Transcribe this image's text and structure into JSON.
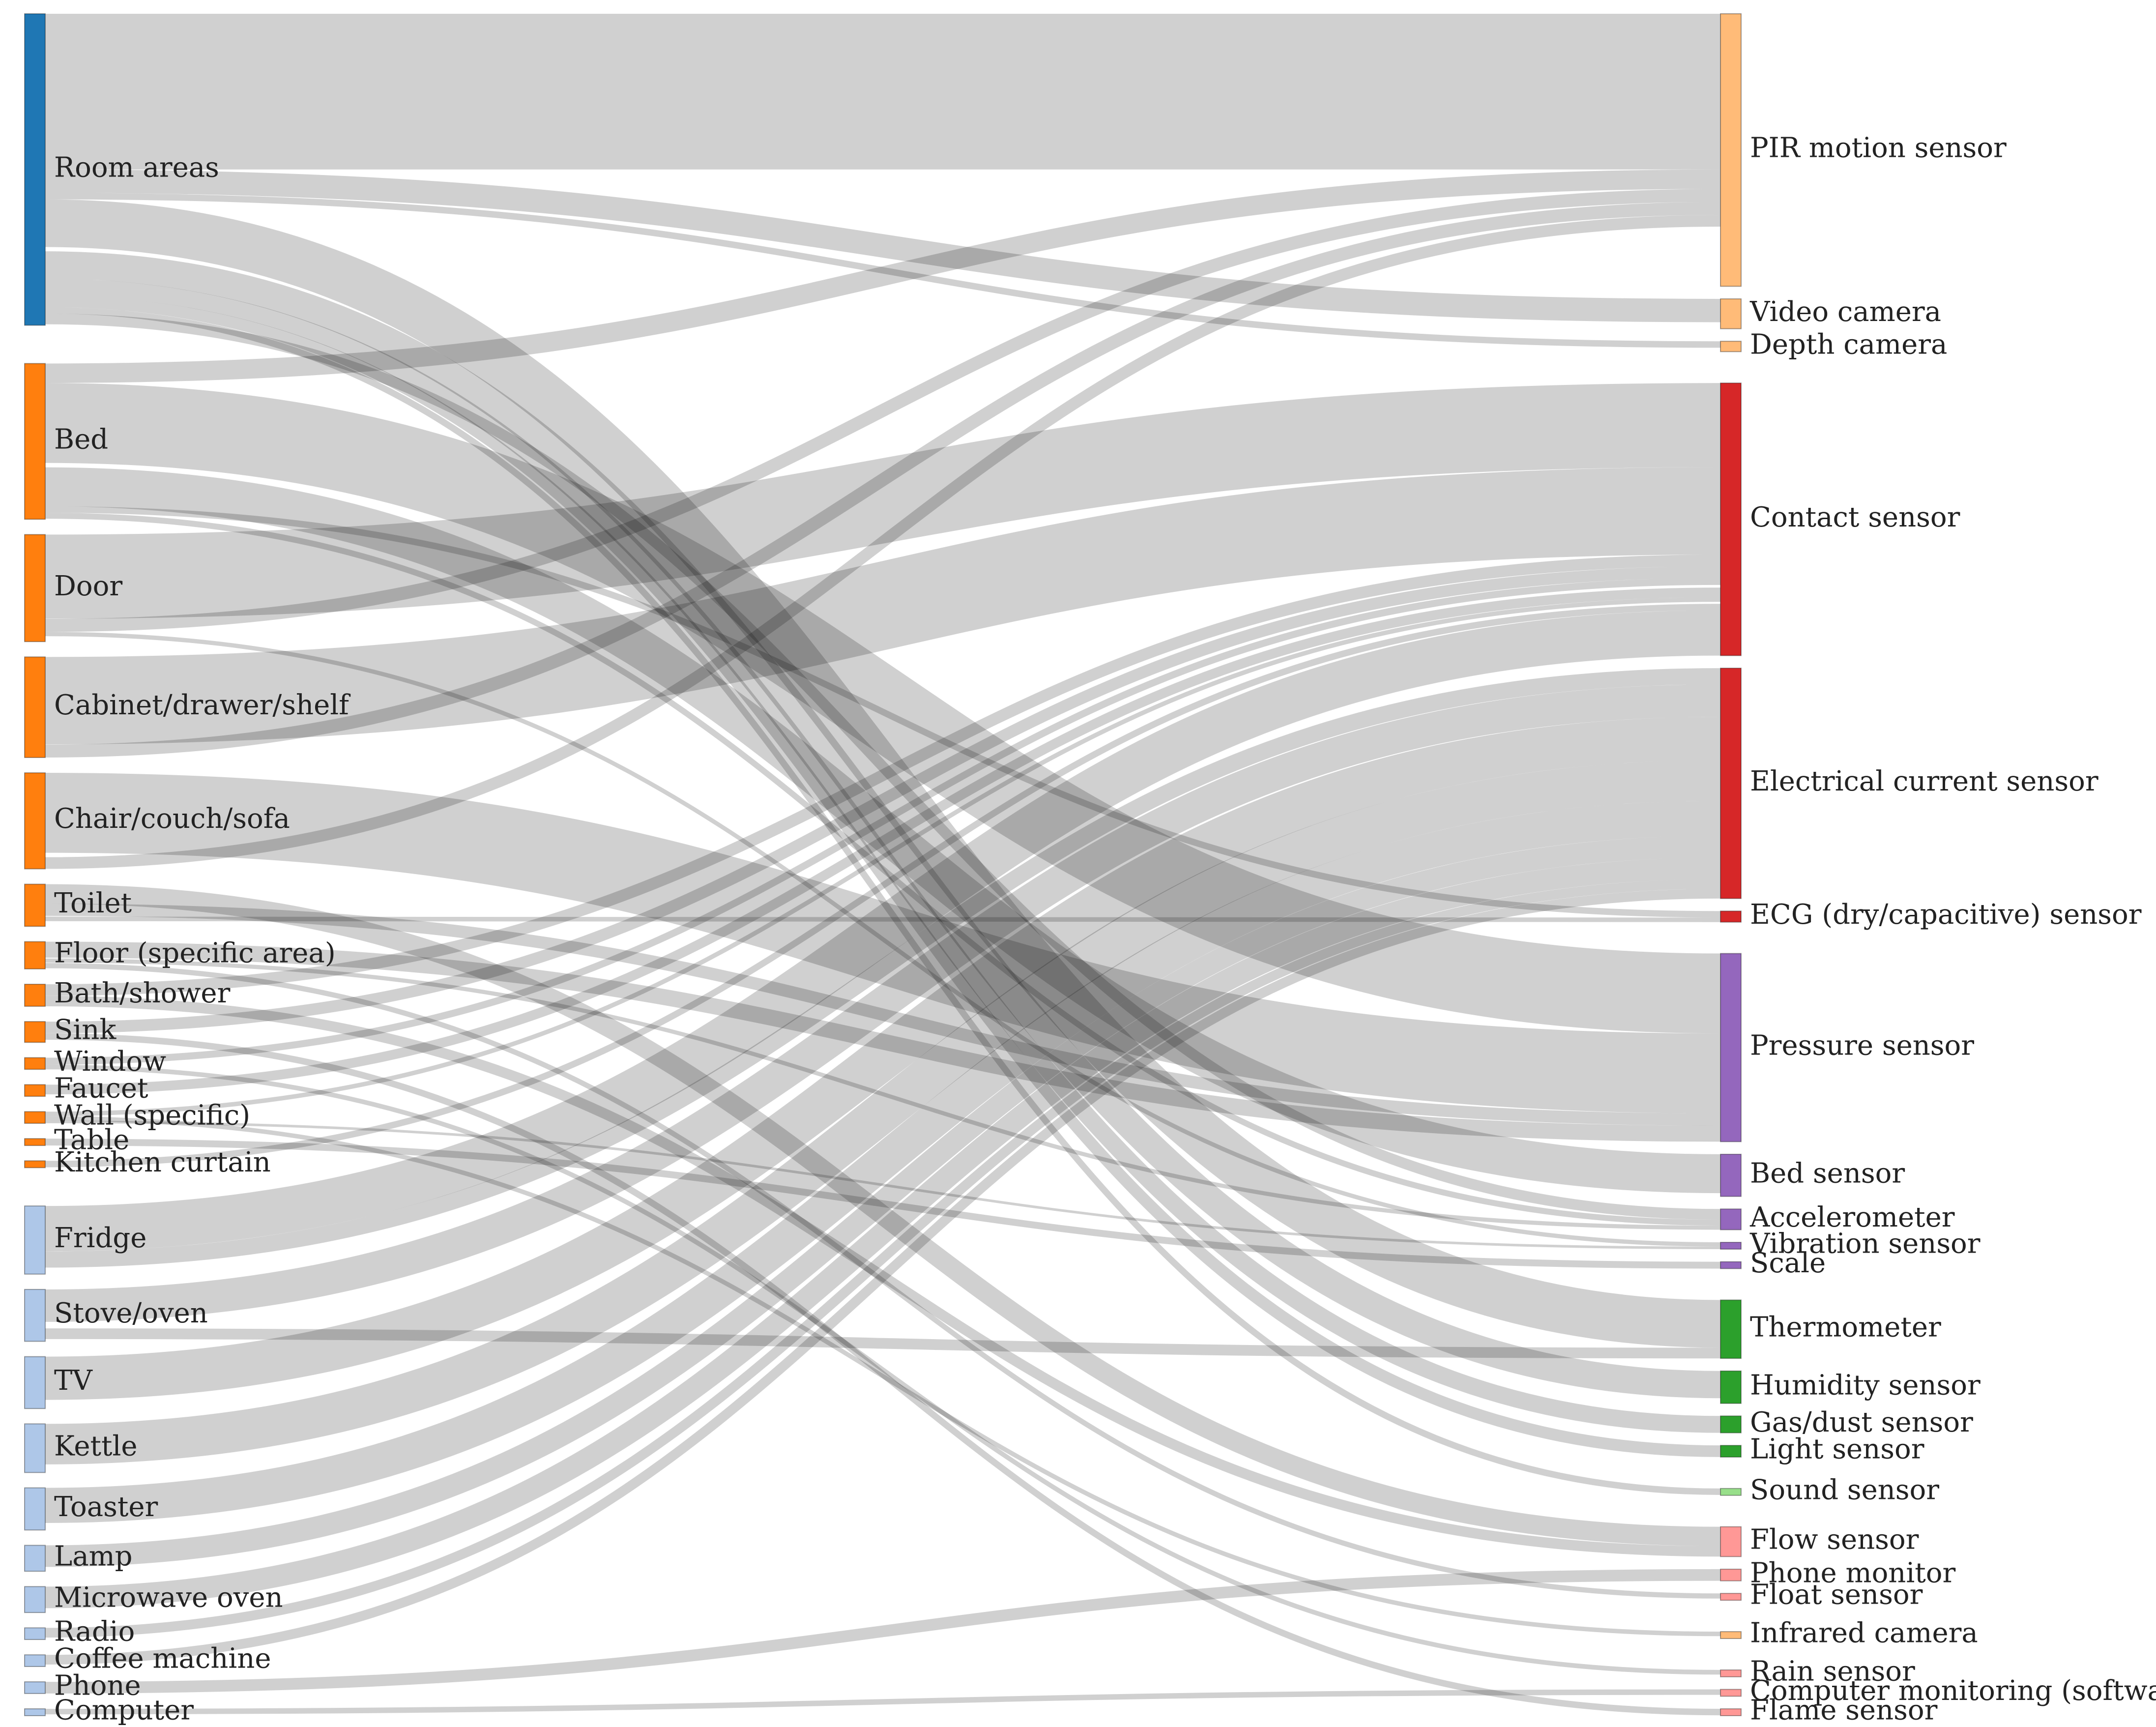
{
  "colors": {
    "room": "#1f77b4",
    "furniture": "#ff7f0e",
    "appliance": "#aec7e8",
    "link": "#c8c8c8",
    "camera": "#ffbb78",
    "contact": "#d62728",
    "pressure": "#9467bd",
    "environment": "#2ca02c",
    "environment_light": "#98df8a",
    "misc": "#ff9896"
  },
  "sources": [
    {
      "id": "room-areas",
      "label": "Room areas",
      "color": "room",
      "weight": 48
    },
    {
      "id": "bed",
      "label": "Bed",
      "color": "furniture",
      "weight": 24
    },
    {
      "id": "door",
      "label": "Door",
      "color": "furniture",
      "weight": 16.5
    },
    {
      "id": "cabinet",
      "label": "Cabinet/drawer/shelf",
      "color": "furniture",
      "weight": 15.5
    },
    {
      "id": "chair",
      "label": "Chair/couch/sofa",
      "color": "furniture",
      "weight": 14.8
    },
    {
      "id": "toilet",
      "label": "Toilet",
      "color": "furniture",
      "weight": 6.5
    },
    {
      "id": "floor",
      "label": "Floor (specific area)",
      "color": "furniture",
      "weight": 4.2
    },
    {
      "id": "bath",
      "label": "Bath/shower",
      "color": "furniture",
      "weight": 3.4
    },
    {
      "id": "sink",
      "label": "Sink",
      "color": "furniture",
      "weight": 3.2
    },
    {
      "id": "window",
      "label": "Window",
      "color": "furniture",
      "weight": 1.8
    },
    {
      "id": "faucet",
      "label": "Faucet",
      "color": "furniture",
      "weight": 1.8
    },
    {
      "id": "wall",
      "label": "Wall (specific)",
      "color": "furniture",
      "weight": 1.8
    },
    {
      "id": "table",
      "label": "Table",
      "color": "furniture",
      "weight": 1
    },
    {
      "id": "kitchen-curtain",
      "label": "Kitchen curtain",
      "color": "furniture",
      "weight": 1
    },
    {
      "id": "fridge",
      "label": "Fridge",
      "color": "appliance",
      "weight": 10.5
    },
    {
      "id": "stove",
      "label": "Stove/oven",
      "color": "appliance",
      "weight": 8
    },
    {
      "id": "tv",
      "label": "TV",
      "color": "appliance",
      "weight": 8
    },
    {
      "id": "kettle",
      "label": "Kettle",
      "color": "appliance",
      "weight": 7.5
    },
    {
      "id": "toaster",
      "label": "Toaster",
      "color": "appliance",
      "weight": 6.5
    },
    {
      "id": "lamp",
      "label": "Lamp",
      "color": "appliance",
      "weight": 4
    },
    {
      "id": "microwave",
      "label": "Microwave oven",
      "color": "appliance",
      "weight": 4
    },
    {
      "id": "radio",
      "label": "Radio",
      "color": "appliance",
      "weight": 1.8
    },
    {
      "id": "coffee",
      "label": "Coffee machine",
      "color": "appliance",
      "weight": 1.8
    },
    {
      "id": "phone",
      "label": "Phone",
      "color": "appliance",
      "weight": 1.8
    },
    {
      "id": "computer",
      "label": "Computer",
      "color": "appliance",
      "weight": 0.8
    }
  ],
  "targets": [
    {
      "id": "pir",
      "label": "PIR motion sensor",
      "color": "camera",
      "weight": 42
    },
    {
      "id": "video",
      "label": "Video camera",
      "color": "camera",
      "weight": 4.6
    },
    {
      "id": "depth",
      "label": "Depth camera",
      "color": "camera",
      "weight": 1.6
    },
    {
      "id": "contact",
      "label": "Contact sensor",
      "color": "contact",
      "weight": 42
    },
    {
      "id": "electrical",
      "label": "Electrical current sensor",
      "color": "contact",
      "weight": 35.5
    },
    {
      "id": "ecg",
      "label": "ECG (dry/capacitive) sensor",
      "color": "contact",
      "weight": 1.7
    },
    {
      "id": "pressure",
      "label": "Pressure sensor",
      "color": "pressure",
      "weight": 29
    },
    {
      "id": "bed-sensor",
      "label": "Bed sensor",
      "color": "pressure",
      "weight": 6.5
    },
    {
      "id": "accelerometer",
      "label": "Accelerometer",
      "color": "pressure",
      "weight": 3.2
    },
    {
      "id": "vibration",
      "label": "Vibration sensor",
      "color": "pressure",
      "weight": 1
    },
    {
      "id": "scale",
      "label": "Scale",
      "color": "pressure",
      "weight": 1
    },
    {
      "id": "thermometer",
      "label": "Thermometer",
      "color": "environment",
      "weight": 9
    },
    {
      "id": "humidity",
      "label": "Humidity sensor",
      "color": "environment",
      "weight": 5
    },
    {
      "id": "gas",
      "label": "Gas/dust sensor",
      "color": "environment",
      "weight": 2.6
    },
    {
      "id": "light",
      "label": "Light sensor",
      "color": "environment",
      "weight": 1.8
    },
    {
      "id": "sound",
      "label": "Sound sensor",
      "color": "environment_light",
      "weight": 1
    },
    {
      "id": "flow",
      "label": "Flow sensor",
      "color": "misc",
      "weight": 4.6
    },
    {
      "id": "phone-monitor",
      "label": "Phone monitor",
      "color": "misc",
      "weight": 1.8
    },
    {
      "id": "float",
      "label": "Float sensor",
      "color": "misc",
      "weight": 1
    },
    {
      "id": "infrared",
      "label": "Infrared camera",
      "color": "camera",
      "weight": 1
    },
    {
      "id": "rain",
      "label": "Rain sensor",
      "color": "misc",
      "weight": 1
    },
    {
      "id": "computer-monitoring",
      "label": "Computer monitoring (software)",
      "color": "misc",
      "weight": 1
    },
    {
      "id": "flame",
      "label": "Flame sensor",
      "color": "misc",
      "weight": 1
    }
  ],
  "links": [
    {
      "s": "room-areas",
      "t": "pir",
      "v": 24
    },
    {
      "s": "room-areas",
      "t": "video",
      "v": 3.6
    },
    {
      "s": "room-areas",
      "t": "depth",
      "v": 1
    },
    {
      "s": "room-areas",
      "t": "thermometer",
      "v": 8
    },
    {
      "s": "room-areas",
      "t": "humidity",
      "v": 4.2
    },
    {
      "s": "room-areas",
      "t": "gas",
      "v": 2.6
    },
    {
      "s": "room-areas",
      "t": "light",
      "v": 1.8
    },
    {
      "s": "room-areas",
      "t": "sound",
      "v": 1
    },
    {
      "s": "room-areas",
      "t": "accelerometer",
      "v": 1.8
    },
    {
      "s": "bed",
      "t": "pir",
      "v": 3
    },
    {
      "s": "bed",
      "t": "pressure",
      "v": 13
    },
    {
      "s": "bed",
      "t": "bed-sensor",
      "v": 6
    },
    {
      "s": "bed",
      "t": "ecg",
      "v": 1
    },
    {
      "s": "bed",
      "t": "accelerometer",
      "v": 1
    },
    {
      "s": "door",
      "t": "contact",
      "v": 13
    },
    {
      "s": "door",
      "t": "pir",
      "v": 2
    },
    {
      "s": "door",
      "t": "vibration",
      "v": 1
    },
    {
      "s": "cabinet",
      "t": "contact",
      "v": 13.5
    },
    {
      "s": "cabinet",
      "t": "pir",
      "v": 2
    },
    {
      "s": "chair",
      "t": "pressure",
      "v": 13
    },
    {
      "s": "chair",
      "t": "pir",
      "v": 1.8
    },
    {
      "s": "toilet",
      "t": "flow",
      "v": 3
    },
    {
      "s": "toilet",
      "t": "pressure",
      "v": 2
    },
    {
      "s": "toilet",
      "t": "ecg",
      "v": 0.7
    },
    {
      "s": "floor",
      "t": "pressure",
      "v": 2.6
    },
    {
      "s": "floor",
      "t": "accelerometer",
      "v": 0.7
    },
    {
      "s": "floor",
      "t": "float",
      "v": 0.8
    },
    {
      "s": "bath",
      "t": "contact",
      "v": 1.8
    },
    {
      "s": "bath",
      "t": "flow",
      "v": 1.6
    },
    {
      "s": "sink",
      "t": "contact",
      "v": 1.8
    },
    {
      "s": "sink",
      "t": "flame",
      "v": 1
    },
    {
      "s": "window",
      "t": "contact",
      "v": 1.5
    },
    {
      "s": "window",
      "t": "rain",
      "v": 1
    },
    {
      "s": "faucet",
      "t": "contact",
      "v": 1.5
    },
    {
      "s": "wall",
      "t": "contact",
      "v": 1
    },
    {
      "s": "wall",
      "t": "infrared",
      "v": 1
    },
    {
      "s": "wall",
      "t": "vibration",
      "v": 0.6
    },
    {
      "s": "table",
      "t": "scale",
      "v": 1
    },
    {
      "s": "kitchen-curtain",
      "t": "contact",
      "v": 1
    },
    {
      "s": "fridge",
      "t": "contact",
      "v": 7
    },
    {
      "s": "fridge",
      "t": "electrical",
      "v": 3
    },
    {
      "s": "stove",
      "t": "electrical",
      "v": 6
    },
    {
      "s": "stove",
      "t": "thermometer",
      "v": 1.8
    },
    {
      "s": "tv",
      "t": "electrical",
      "v": 8
    },
    {
      "s": "kettle",
      "t": "electrical",
      "v": 7.5
    },
    {
      "s": "toaster",
      "t": "electrical",
      "v": 6.5
    },
    {
      "s": "lamp",
      "t": "electrical",
      "v": 4
    },
    {
      "s": "microwave",
      "t": "electrical",
      "v": 4
    },
    {
      "s": "radio",
      "t": "electrical",
      "v": 1.8
    },
    {
      "s": "coffee",
      "t": "electrical",
      "v": 1.8
    },
    {
      "s": "phone",
      "t": "phone-monitor",
      "v": 1.8
    },
    {
      "s": "computer",
      "t": "computer-monitoring",
      "v": 0.8
    }
  ]
}
